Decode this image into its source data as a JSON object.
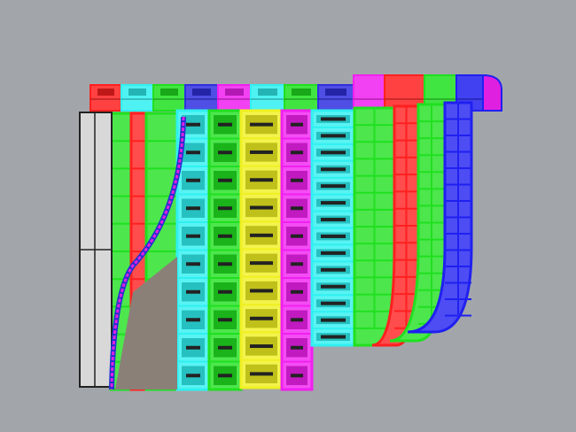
{
  "viewport": {
    "background": "#a2a6aa",
    "back_row_colors": [
      "#ff2020",
      "#30f0f0",
      "#20e020",
      "#3030e0",
      "#f020f0",
      "#30f0f0",
      "#20e020",
      "#3030e0",
      "#f020f0",
      "#ff2020",
      "#20e020",
      "#2020f0"
    ],
    "front_column_colors": [
      "#20e020",
      "#ff2020",
      "#20e020",
      "#30f0f0",
      "#20e020",
      "#f0f020",
      "#f020f0",
      "#30f0f0",
      "#20e020",
      "#ff2020",
      "#20e020",
      "#2020f0"
    ],
    "frame_color": "#d8d8d8",
    "edge_curve_color": "#e020e0",
    "shadow_color": "#8a8078"
  }
}
